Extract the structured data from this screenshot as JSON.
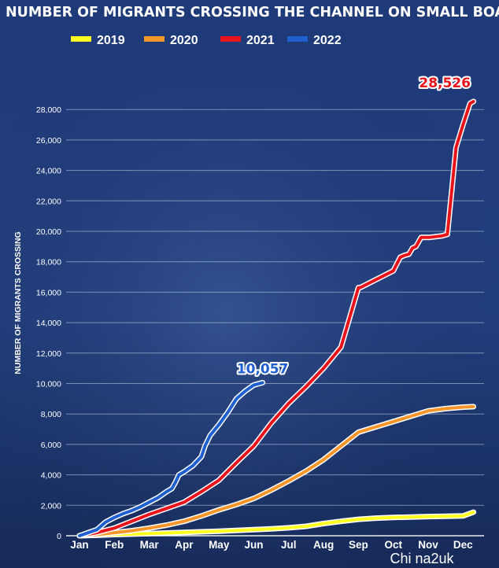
{
  "chart_data": {
    "type": "line",
    "title": "NUMBER OF MIGRANTS CROSSING THE CHANNEL ON SMALL BOATS",
    "xlabel": "",
    "ylabel": "NUMBER OF MIGRANTS CROSSING",
    "ylim": [
      0,
      29000
    ],
    "y_ticks": [
      "0",
      "2,000",
      "4,000",
      "6,000",
      "8,000",
      "10,000",
      "12,000",
      "14,000",
      "16,000",
      "18,000",
      "20,000",
      "22,000",
      "24,000",
      "26,000",
      "28,000"
    ],
    "x_ticks": [
      "Jan",
      "Feb",
      "Mar",
      "Apr",
      "May",
      "Jun",
      "Jul",
      "Aug",
      "Sep",
      "Oct",
      "Nov",
      "Dec"
    ],
    "grid": true,
    "legend_position": "top",
    "series": [
      {
        "name": "2019",
        "color": "#ffff22",
        "x": [
          0,
          0.5,
          1,
          1.5,
          2,
          2.5,
          3,
          3.5,
          4,
          4.5,
          5,
          5.5,
          6,
          6.5,
          7,
          7.5,
          8,
          8.5,
          9,
          9.5,
          10,
          10.5,
          11,
          11.3
        ],
        "y": [
          0,
          30,
          80,
          110,
          140,
          180,
          220,
          260,
          300,
          350,
          400,
          450,
          520,
          620,
          800,
          950,
          1080,
          1160,
          1200,
          1230,
          1260,
          1280,
          1300,
          1550
        ]
      },
      {
        "name": "2020",
        "color": "#f5952a",
        "x": [
          0,
          0.5,
          1,
          1.5,
          2,
          2.5,
          3,
          3.5,
          4,
          4.5,
          5,
          5.5,
          6,
          6.5,
          7,
          7.5,
          8,
          8.5,
          9,
          9.5,
          10,
          10.5,
          11,
          11.3
        ],
        "y": [
          0,
          80,
          200,
          330,
          500,
          700,
          950,
          1300,
          1700,
          2050,
          2450,
          3000,
          3600,
          4250,
          5000,
          5900,
          6800,
          7150,
          7500,
          7850,
          8200,
          8350,
          8450,
          8480
        ]
      },
      {
        "name": "2021",
        "color": "#e8141c",
        "x": [
          0,
          0.5,
          1,
          1.5,
          2,
          2.5,
          3,
          3.5,
          4,
          4.5,
          5,
          5.5,
          6,
          6.5,
          7,
          7.5,
          8,
          8.05,
          9,
          9.2,
          9.3,
          9.45,
          9.55,
          9.65,
          9.8,
          10,
          10.05,
          10.4,
          10.55,
          10.8,
          11,
          11.2,
          11.3
        ],
        "y": [
          0,
          200,
          500,
          950,
          1400,
          1800,
          2200,
          2900,
          3650,
          4800,
          5900,
          7400,
          8700,
          9800,
          11000,
          12400,
          16300,
          16300,
          17400,
          18300,
          18400,
          18500,
          18900,
          19000,
          19600,
          19600,
          19600,
          19700,
          19800,
          25500,
          27000,
          28400,
          28526
        ]
      },
      {
        "name": "2022",
        "color": "#1f5fd0",
        "x": [
          0,
          0.25,
          0.5,
          0.75,
          1,
          1.25,
          1.5,
          1.75,
          2,
          2.25,
          2.5,
          2.65,
          2.75,
          2.85,
          3,
          3.25,
          3.5,
          3.6,
          3.75,
          4,
          4.25,
          4.5,
          4.75,
          5,
          5.25
        ],
        "y": [
          0,
          200,
          400,
          900,
          1200,
          1450,
          1650,
          1900,
          2200,
          2500,
          2900,
          3100,
          3500,
          4000,
          4200,
          4600,
          5200,
          5900,
          6600,
          7300,
          8100,
          9000,
          9500,
          9900,
          10057
        ]
      }
    ],
    "annotations": [
      {
        "text": "28,526",
        "series": "2021"
      },
      {
        "text": "10,057",
        "series": "2022"
      }
    ]
  },
  "watermark": "Chi na2uk"
}
